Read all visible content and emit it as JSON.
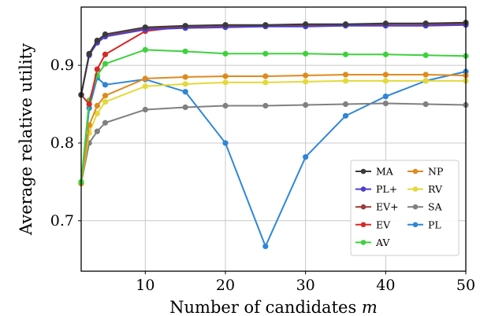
{
  "chart_data": {
    "type": "line",
    "xlabel": "Number of candidates ",
    "xlabel_var": "m",
    "ylabel": "Average relative utility",
    "xlim": [
      2,
      50
    ],
    "ylim": [
      0.635,
      0.975
    ],
    "xticks": [
      10,
      20,
      30,
      40,
      50
    ],
    "yticks": [
      0.7,
      0.8,
      0.9
    ],
    "ytick_labels": [
      "0.7",
      "0.8",
      "0.9"
    ],
    "grid": true,
    "legend_position": "lower-right",
    "x": [
      2,
      3,
      4,
      5,
      10,
      15,
      20,
      25,
      30,
      35,
      40,
      45,
      50
    ],
    "series": [
      {
        "name": "MA",
        "color": "#3a3a3a",
        "values": [
          0.862,
          0.915,
          0.932,
          0.94,
          0.949,
          0.951,
          0.952,
          0.952,
          0.953,
          0.953,
          0.954,
          0.954,
          0.955
        ]
      },
      {
        "name": "PL+",
        "color": "#4d3fcc",
        "values": [
          0.862,
          0.913,
          0.929,
          0.937,
          0.946,
          0.948,
          0.949,
          0.95,
          0.95,
          0.951,
          0.951,
          0.951,
          0.952
        ]
      },
      {
        "name": "EV+",
        "color": "#9e3a3a",
        "values": [
          0.862,
          0.914,
          0.931,
          0.938,
          0.947,
          0.95,
          0.951,
          0.951,
          0.952,
          0.952,
          0.953,
          0.953,
          0.953
        ]
      },
      {
        "name": "EV",
        "color": "#d62828",
        "values": [
          0.862,
          0.85,
          0.895,
          0.914,
          0.944,
          0.95,
          0.951,
          0.951,
          0.952,
          0.952,
          0.953,
          0.954,
          0.954
        ]
      },
      {
        "name": "AV",
        "color": "#3ed13e",
        "values": [
          0.75,
          0.855,
          0.887,
          0.902,
          0.92,
          0.918,
          0.915,
          0.915,
          0.915,
          0.914,
          0.914,
          0.913,
          0.912
        ]
      },
      {
        "name": "NP",
        "color": "#e08a1e",
        "values": [
          0.748,
          0.823,
          0.848,
          0.861,
          0.883,
          0.885,
          0.886,
          0.886,
          0.887,
          0.888,
          0.888,
          0.888,
          0.887
        ]
      },
      {
        "name": "RV",
        "color": "#e3d93a",
        "values": [
          0.748,
          0.813,
          0.838,
          0.853,
          0.873,
          0.876,
          0.878,
          0.878,
          0.879,
          0.88,
          0.88,
          0.88,
          0.88
        ]
      },
      {
        "name": "SA",
        "color": "#808080",
        "values": [
          0.748,
          0.8,
          0.815,
          0.826,
          0.843,
          0.846,
          0.848,
          0.848,
          0.849,
          0.85,
          0.851,
          0.85,
          0.849
        ]
      },
      {
        "name": "PL",
        "color": "#2f86d6",
        "values": [
          0.748,
          0.845,
          0.884,
          0.875,
          0.882,
          0.866,
          0.8,
          0.667,
          0.782,
          0.835,
          0.86,
          0.88,
          0.892
        ]
      }
    ],
    "legend_columns": [
      [
        "MA",
        "PL+",
        "EV+",
        "EV",
        "AV"
      ],
      [
        "NP",
        "RV",
        "SA",
        "PL"
      ]
    ]
  }
}
